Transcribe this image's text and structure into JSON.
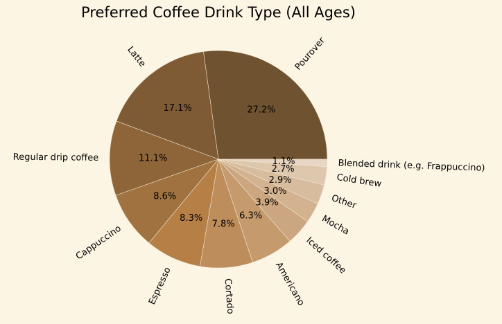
{
  "chart_data": {
    "type": "pie",
    "title": "Preferred Coffee Drink Type (All Ages)",
    "categories": [
      "Pourover",
      "Latte",
      "Regular drip coffee",
      "Cappuccino",
      "Espresso",
      "Cortado",
      "Americano",
      "Iced coffee",
      "Mocha",
      "Other",
      "Cold brew",
      "Blended drink (e.g. Frappuccino)"
    ],
    "values": [
      27.2,
      17.1,
      11.1,
      8.6,
      8.3,
      7.8,
      6.3,
      3.9,
      3.0,
      2.9,
      2.7,
      1.1
    ],
    "value_labels": [
      "27.2%",
      "17.1%",
      "11.1%",
      "8.6%",
      "8.3%",
      "7.8%",
      "6.3%",
      "3.9%",
      "3.0%",
      "2.9%",
      "2.7%",
      "1.1%"
    ],
    "colors": [
      "#6f5230",
      "#7e5b35",
      "#8d6538",
      "#a0723f",
      "#b57f46",
      "#bd8d5b",
      "#c59b6e",
      "#cca680",
      "#d2b28f",
      "#d7bc9d",
      "#ddc7ad",
      "#e6d6c3"
    ],
    "start_angle": 0,
    "direction": "counterclockwise",
    "legend": "none",
    "background": "#fdf5e4"
  }
}
